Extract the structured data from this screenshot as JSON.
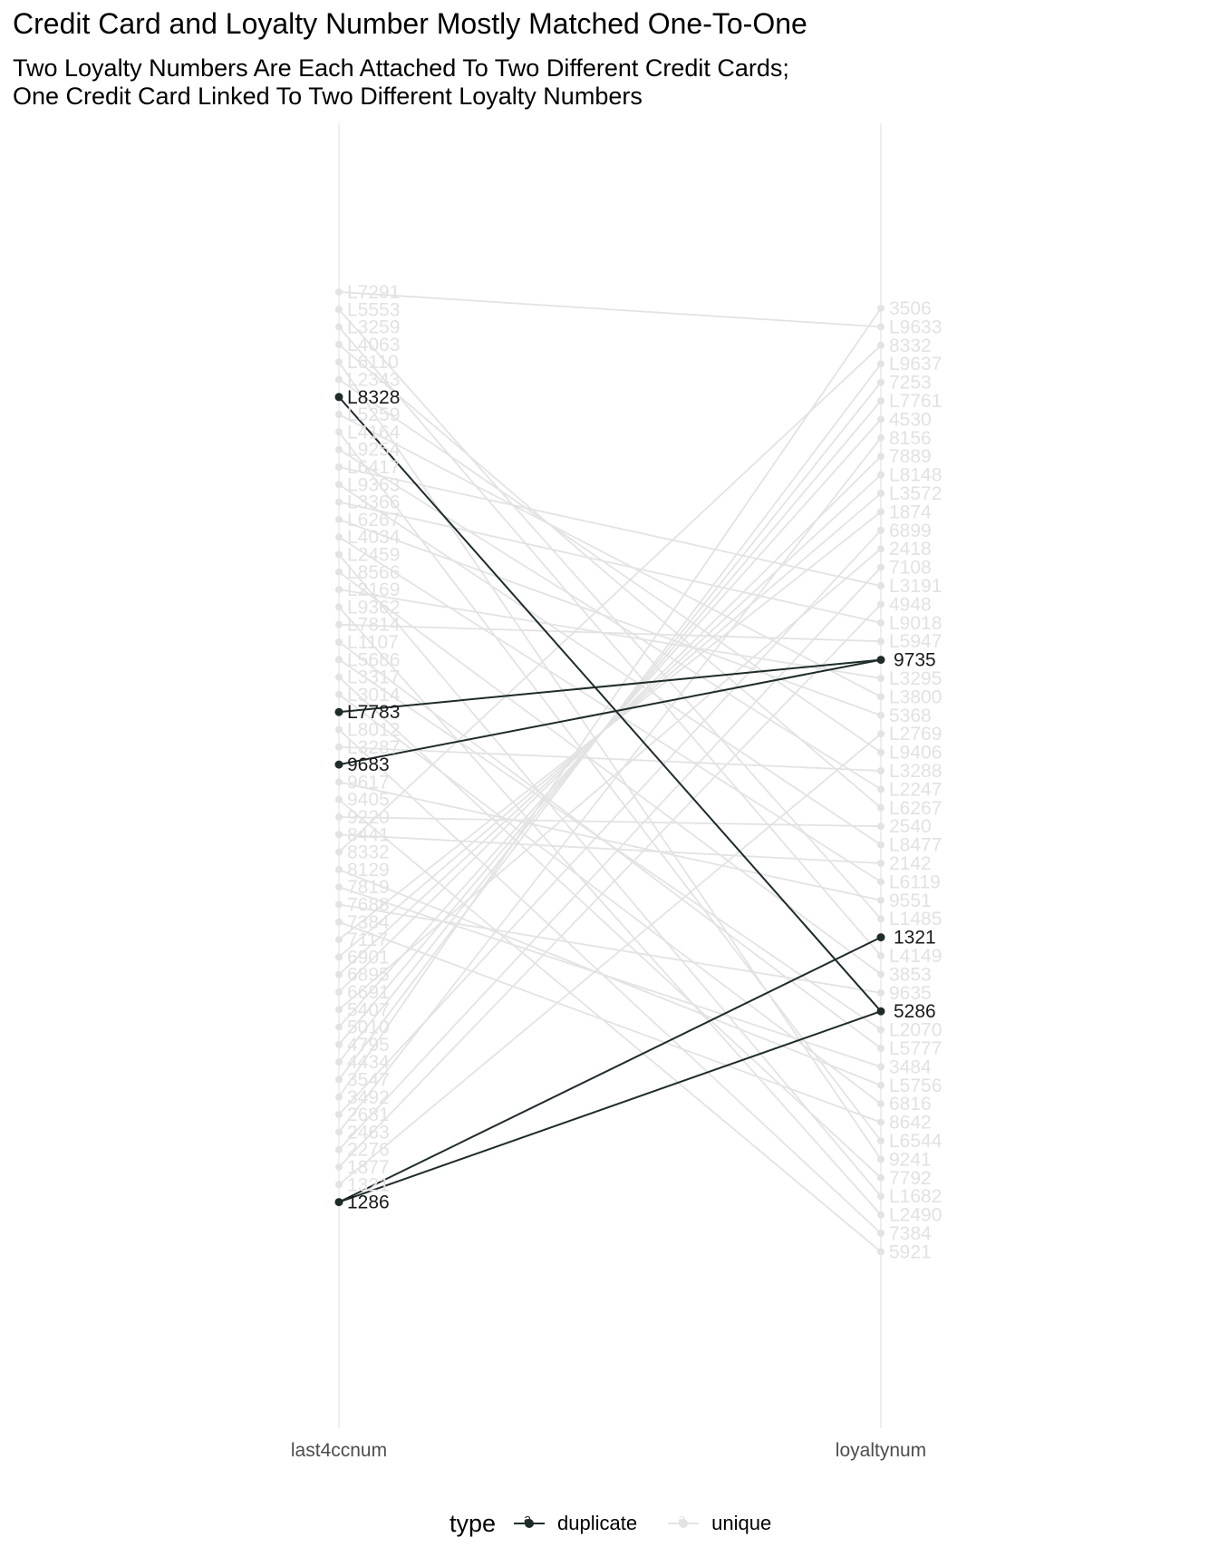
{
  "title": "Credit Card and Loyalty Number Mostly Matched One-To-One",
  "subtitle": [
    "Two Loyalty Numbers Are Each Attached To Two Different Credit Cards;",
    "One Credit Card Linked To Two Different Loyalty Numbers"
  ],
  "colors": {
    "duplicate": "#1e2b2b",
    "unique": "#e3e3e3",
    "axis_line": "#ebebeb",
    "tick_text": "#4d4d4d"
  },
  "chart_data": {
    "type": "slope",
    "categories": [
      "last4ccnum",
      "loyaltynum"
    ],
    "left_labels": [
      "L7291",
      "L5553",
      "L3259",
      "L4063",
      "L6110",
      "L2343",
      "L8328",
      "L5259",
      "L4164",
      "L9254",
      "L6417",
      "L9363",
      "L3366",
      "L6267",
      "L4034",
      "L2459",
      "L8566",
      "L2169",
      "L9362",
      "L7814",
      "L1107",
      "L5686",
      "L3317",
      "L3014",
      "L7783",
      "L8012",
      "L3287",
      "9683",
      "9617",
      "9405",
      "9220",
      "8441",
      "8332",
      "8129",
      "7819",
      "7688",
      "7384",
      "7117",
      "6901",
      "6895",
      "6691",
      "5407",
      "5010",
      "4795",
      "4434",
      "3547",
      "3492",
      "2681",
      "2463",
      "2276",
      "1877",
      "1321",
      "1286"
    ],
    "right_labels": [
      "3506",
      "L9633",
      "8332",
      "L9637",
      "7253",
      "L7761",
      "4530",
      "8156",
      "7889",
      "L8148",
      "L3572",
      "1874",
      "6899",
      "2418",
      "7108",
      "L3191",
      "4948",
      "L9018",
      "L5947",
      "9735",
      "L3295",
      "L3800",
      "5368",
      "L2769",
      "L9406",
      "L3288",
      "L2247",
      "L6267",
      "2540",
      "L8477",
      "2142",
      "L6119",
      "9551",
      "L1485",
      "1321",
      "L4149",
      "3853",
      "9635",
      "5286",
      "L2070",
      "L5777",
      "3484",
      "L5756",
      "6816",
      "8642",
      "L6544",
      "9241",
      "7792",
      "L1682",
      "L2490",
      "7384",
      "5921"
    ],
    "duplicate_links": [
      [
        "L8328",
        "5286"
      ],
      [
        "L7783",
        "9735"
      ],
      [
        "9683",
        "9735"
      ],
      [
        "1286",
        "1321"
      ],
      [
        "1286",
        "5286"
      ]
    ],
    "duplicate_left_labels": [
      "L8328",
      "L7783",
      "9683",
      "1286"
    ],
    "duplicate_right_labels": [
      "9735",
      "1321",
      "5286"
    ],
    "unique_links": [
      [
        "L7291",
        "L9633"
      ],
      [
        "L5553",
        "L1485"
      ],
      [
        "L3259",
        "L4149"
      ],
      [
        "L4063",
        "L6267"
      ],
      [
        "L6110",
        "9241"
      ],
      [
        "L2343",
        "L9406"
      ],
      [
        "L5259",
        "L3800"
      ],
      [
        "L4164",
        "L6544"
      ],
      [
        "L9254",
        "L2247"
      ],
      [
        "L6417",
        "L3191"
      ],
      [
        "L9363",
        "L8477"
      ],
      [
        "L3366",
        "L9018"
      ],
      [
        "L6267",
        "5368"
      ],
      [
        "L4034",
        "L6119"
      ],
      [
        "L2459",
        "L1682"
      ],
      [
        "L8566",
        "3853"
      ],
      [
        "L2169",
        "L3295"
      ],
      [
        "L9362",
        "L2490"
      ],
      [
        "L7814",
        "L5947"
      ],
      [
        "L1107",
        "L5777"
      ],
      [
        "L5686",
        "L2070"
      ],
      [
        "L3317",
        "7792"
      ],
      [
        "L3014",
        "6816"
      ],
      [
        "L8012",
        "7384"
      ],
      [
        "L3287",
        "L3288"
      ],
      [
        "9617",
        "9551"
      ],
      [
        "9405",
        "5921"
      ],
      [
        "9220",
        "2540"
      ],
      [
        "8441",
        "2142"
      ],
      [
        "8332",
        "8332"
      ],
      [
        "8129",
        "L5756"
      ],
      [
        "7819",
        "3484"
      ],
      [
        "7688",
        "9635"
      ],
      [
        "7384",
        "8642"
      ],
      [
        "7117",
        "1874"
      ],
      [
        "6901",
        "L3572"
      ],
      [
        "6895",
        "L8148"
      ],
      [
        "6691",
        "7889"
      ],
      [
        "5407",
        "2418"
      ],
      [
        "5010",
        "4530"
      ],
      [
        "4795",
        "L7761"
      ],
      [
        "4434",
        "7253"
      ],
      [
        "3547",
        "L9637"
      ],
      [
        "3492",
        "3506"
      ],
      [
        "2681",
        "6899"
      ],
      [
        "2463",
        "8156"
      ],
      [
        "2276",
        "7108"
      ],
      [
        "1877",
        "4948"
      ],
      [
        "1321",
        "L2769"
      ]
    ],
    "legend": {
      "title": "type",
      "entries": [
        "duplicate",
        "unique"
      ],
      "key_glyph": "a"
    }
  }
}
